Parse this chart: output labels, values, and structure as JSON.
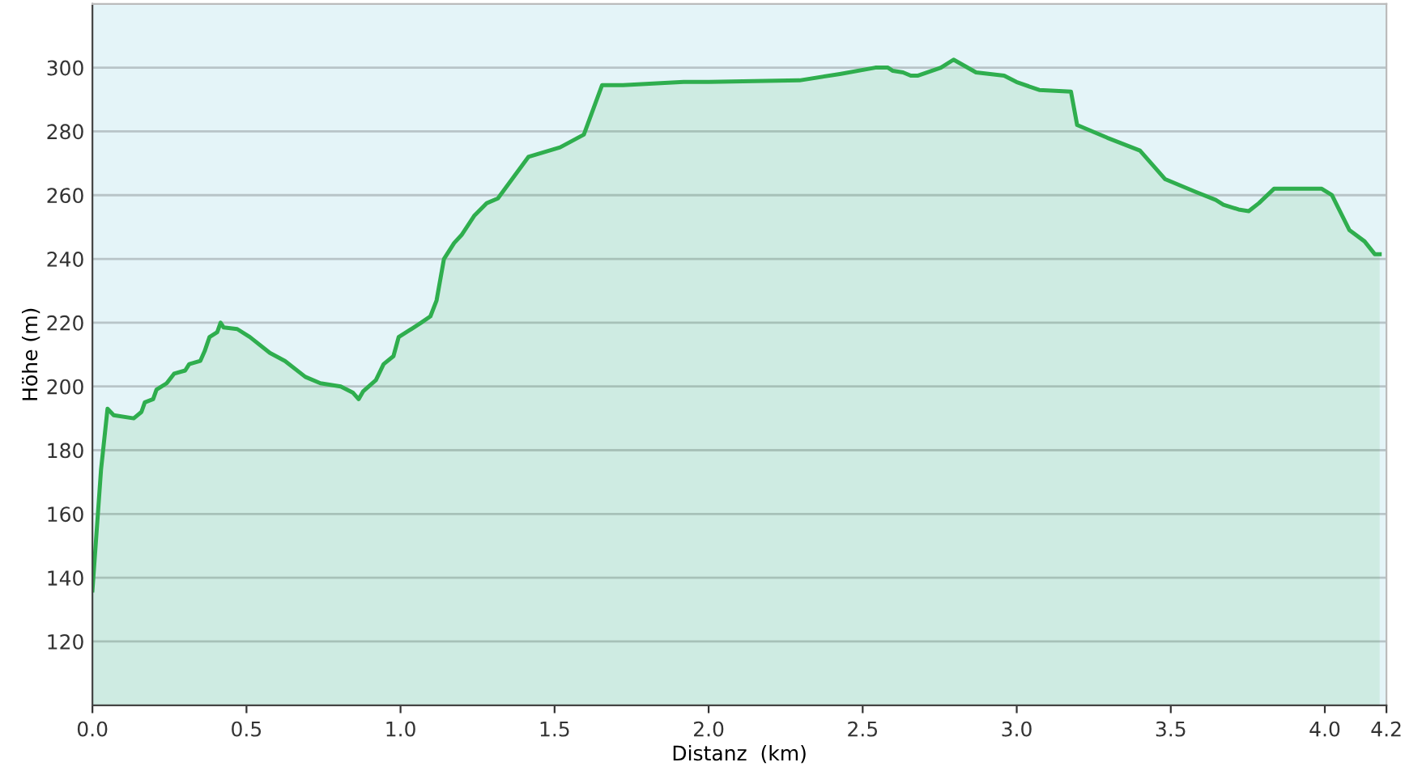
{
  "chart_data": {
    "type": "area",
    "xlabel": "Distanz  (km)",
    "ylabel": "Höhe (m)",
    "xlim": [
      0,
      4.2
    ],
    "xticks": [
      {
        "value": 0,
        "label": "0.0"
      },
      0.5,
      {
        "value": 1,
        "label": "1.0"
      },
      1.5,
      {
        "value": 2,
        "label": "2.0"
      },
      2.5,
      {
        "value": 3,
        "label": "3.0"
      },
      3.5,
      {
        "value": 4,
        "label": "4.0"
      },
      4.2
    ],
    "ylim": [
      100,
      320
    ],
    "yticks": [
      120,
      140,
      160,
      180,
      200,
      220,
      240,
      260,
      280,
      300
    ],
    "grid": "y",
    "series": [
      {
        "color": "#2fae4e",
        "x": [
          0,
          0.028,
          0.049,
          0.069,
          0.134,
          0.159,
          0.17,
          0.197,
          0.208,
          0.241,
          0.265,
          0.301,
          0.314,
          0.35,
          0.364,
          0.38,
          0.405,
          0.416,
          0.426,
          0.47,
          0.511,
          0.576,
          0.625,
          0.691,
          0.74,
          0.806,
          0.846,
          0.864,
          0.879,
          0.92,
          0.945,
          0.977,
          0.994,
          1.027,
          1.067,
          1.097,
          1.117,
          1.141,
          1.174,
          1.198,
          1.239,
          1.28,
          1.316,
          1.415,
          1.518,
          1.595,
          1.654,
          1.722,
          1.82,
          1.919,
          2.001,
          2.295,
          2.426,
          2.541,
          2.582,
          2.598,
          2.631,
          2.656,
          2.68,
          2.754,
          2.795,
          2.868,
          2.959,
          2.999,
          3.073,
          3.176,
          3.196,
          3.294,
          3.4,
          3.482,
          3.581,
          3.646,
          3.671,
          3.72,
          3.753,
          3.786,
          3.835,
          3.99,
          4.023,
          4.08,
          4.129,
          4.162,
          4.178
        ],
        "values": [
          136,
          174,
          193,
          191,
          190,
          192,
          195,
          196,
          199,
          201,
          204,
          205,
          207,
          208,
          211,
          215.5,
          217,
          220,
          218.5,
          218,
          215.5,
          210.5,
          208,
          203,
          201,
          200,
          198,
          196,
          198.5,
          202,
          207,
          209.5,
          215.5,
          217.5,
          220,
          222,
          227,
          240,
          245,
          247.5,
          253.5,
          257.5,
          259,
          272,
          275,
          279,
          294.5,
          294.5,
          295,
          295.5,
          295.5,
          296,
          298,
          300,
          300,
          299,
          298.5,
          297.5,
          297.5,
          300,
          302.5,
          298.5,
          297.5,
          295.5,
          293,
          292.5,
          282,
          278,
          274,
          265,
          261,
          258.5,
          257,
          255.5,
          255,
          257.5,
          262,
          262,
          260,
          249,
          245.5,
          241.5,
          241.5
        ]
      }
    ]
  }
}
